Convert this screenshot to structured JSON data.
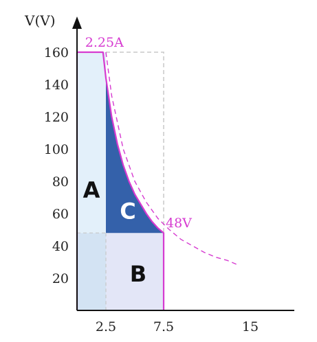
{
  "chart_data": {
    "type": "area",
    "xlabel": "",
    "ylabel": "V(V)",
    "xlim": [
      0,
      16
    ],
    "ylim": [
      0,
      165
    ],
    "x_ticks": [
      "2.5",
      "7.5",
      "15"
    ],
    "y_ticks": [
      "20",
      "40",
      "60",
      "80",
      "100",
      "120",
      "140",
      "160"
    ],
    "x_tick_values": [
      2.5,
      7.5,
      15
    ],
    "y_tick_values": [
      20,
      40,
      60,
      80,
      100,
      120,
      140,
      160
    ],
    "grid": false,
    "max_voltage": 160,
    "max_current": 2.25,
    "min_voltage": 48,
    "max_x": 7.5,
    "boundary_curve": {
      "x": [
        0,
        2.25,
        2.5,
        3,
        3.5,
        4,
        4.5,
        5,
        5.5,
        6,
        6.5,
        7,
        7.5,
        7.5
      ],
      "y": [
        160,
        160,
        144,
        120,
        103,
        90,
        80,
        72,
        66,
        60,
        55,
        51,
        48,
        0
      ]
    },
    "dashed_curve": {
      "x": [
        2.5,
        3,
        4,
        5,
        6,
        7,
        8,
        9,
        10,
        11,
        12,
        13,
        14
      ],
      "y": [
        160,
        133,
        100,
        80,
        67,
        57,
        50,
        44,
        40,
        36,
        33,
        31,
        28
      ]
    },
    "regions": [
      {
        "label": "A",
        "color": "#e3f0fa",
        "x": [
          0,
          2.5
        ],
        "y": [
          48,
          160
        ]
      },
      {
        "label": "B",
        "color": "#e3e6f7",
        "x": [
          2.5,
          7.5
        ],
        "y": [
          0,
          48
        ]
      },
      {
        "label": "",
        "color": "#d3e3f3",
        "x": [
          0,
          2.5
        ],
        "y": [
          0,
          48
        ]
      },
      {
        "label": "C",
        "color": "#3461aa",
        "x": [
          2.5,
          7.5
        ],
        "y": [
          48,
          160
        ]
      }
    ],
    "annotations": [
      {
        "text": "2.25A",
        "x": 2.25,
        "y": 160,
        "color": "#d63ad0"
      },
      {
        "text": "48V",
        "x": 7.5,
        "y": 48,
        "color": "#d63ad0"
      }
    ],
    "colors": {
      "boundary": "#d63ad0",
      "axis": "#111111",
      "guide": "#c8c8c8",
      "region_text_dark": "#111111",
      "region_text_light": "#ffffff"
    }
  }
}
